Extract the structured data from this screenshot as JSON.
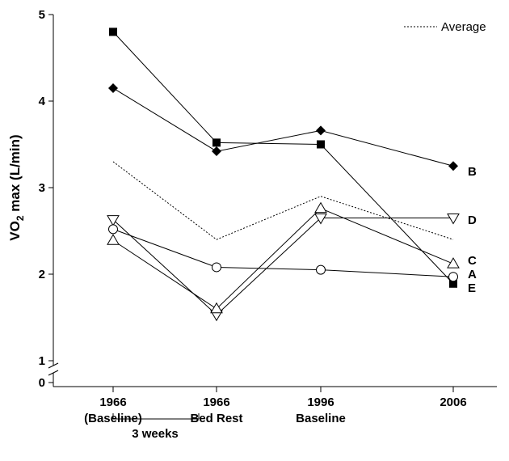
{
  "chart_data": {
    "type": "line",
    "ylabel_main": "VO",
    "ylabel_sub": "2",
    "ylabel_rest": " max (L/min)",
    "ylim": [
      0,
      5
    ],
    "y_axis_break": [
      0,
      1
    ],
    "yticks": [
      "0",
      "1",
      "2",
      "3",
      "4",
      "5"
    ],
    "categories": [
      {
        "line1": "1966",
        "line2": "(Baseline)"
      },
      {
        "line1": "1966",
        "line2": "Bed Rest"
      },
      {
        "line1": "1996",
        "line2": "Baseline"
      },
      {
        "line1": "2006",
        "line2": ""
      }
    ],
    "bracket_label": "3 weeks",
    "legend": {
      "label": "Average",
      "position": "top-right"
    },
    "series": [
      {
        "name": "B",
        "marker": "filled-diamond",
        "values": [
          4.15,
          3.42,
          3.66,
          3.25
        ]
      },
      {
        "name": "E",
        "marker": "filled-square",
        "values": [
          4.8,
          3.52,
          3.5,
          1.89
        ]
      },
      {
        "name": "D",
        "marker": "open-triangle-down",
        "values": [
          2.63,
          1.53,
          2.65,
          2.65
        ]
      },
      {
        "name": "C",
        "marker": "open-triangle-up",
        "values": [
          2.39,
          1.6,
          2.76,
          2.12
        ]
      },
      {
        "name": "A",
        "marker": "open-circle",
        "values": [
          2.52,
          2.08,
          2.05,
          1.97
        ]
      },
      {
        "name": "Average",
        "marker": "none",
        "dashed": true,
        "values": [
          3.3,
          2.4,
          2.9,
          2.4
        ]
      }
    ]
  }
}
